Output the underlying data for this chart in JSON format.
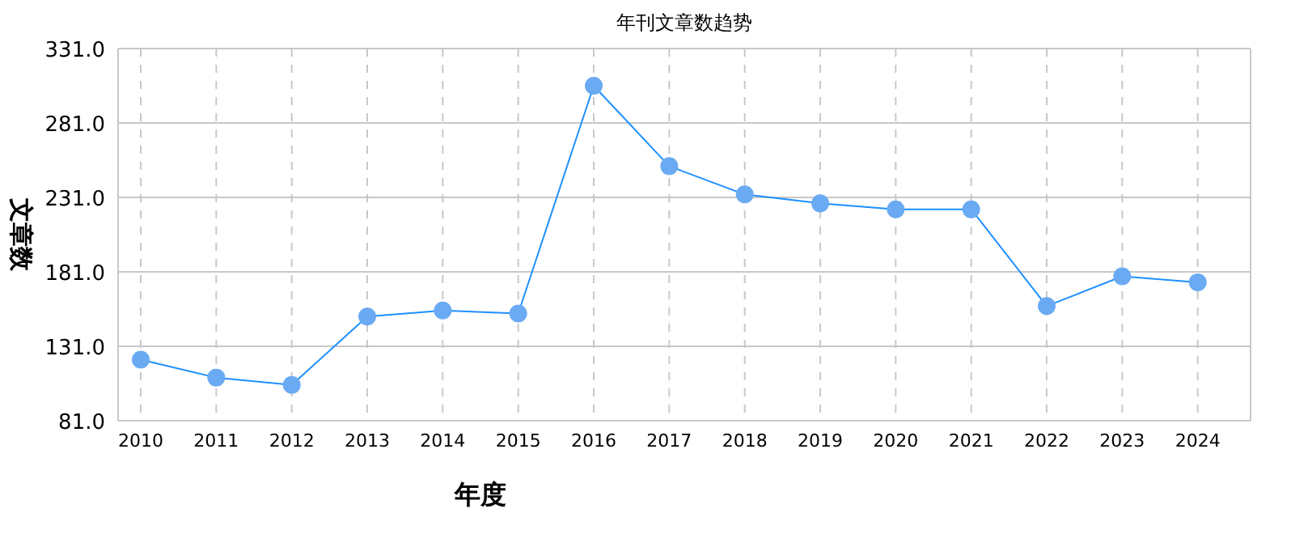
{
  "chart_data": {
    "type": "line",
    "title": "年刊文章数趋势",
    "xlabel": "年度",
    "ylabel": "文章数",
    "categories": [
      "2010",
      "2011",
      "2012",
      "2013",
      "2014",
      "2015",
      "2016",
      "2017",
      "2018",
      "2019",
      "2020",
      "2021",
      "2022",
      "2023",
      "2024"
    ],
    "series": [
      {
        "color": "#1e90ff",
        "values": [
          122,
          110,
          105,
          151,
          155,
          153,
          306,
          252,
          233,
          227,
          223,
          223,
          158,
          178,
          174
        ]
      }
    ],
    "marker": "circle",
    "grid": true,
    "ylim": [
      81,
      331
    ],
    "yticks": [
      {
        "value": 81,
        "label": "81.0"
      },
      {
        "value": 131,
        "label": "131.0"
      },
      {
        "value": 181,
        "label": "181.0"
      },
      {
        "value": 231,
        "label": "231.0"
      },
      {
        "value": 281,
        "label": "281.0"
      },
      {
        "value": 331,
        "label": "331.0"
      }
    ]
  }
}
